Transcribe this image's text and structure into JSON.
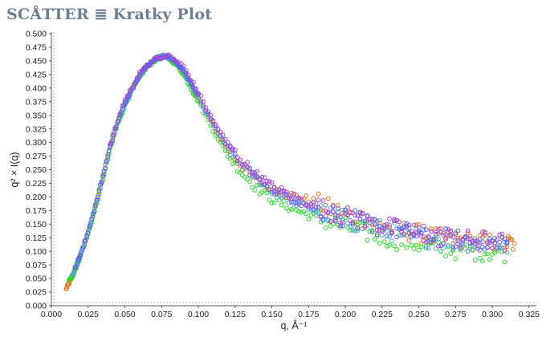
{
  "header": {
    "title": "SCÅTTER ≣ Kratky Plot"
  },
  "chart_data": {
    "type": "scatter",
    "title": "Kratky Plot",
    "xlabel": "q, Å⁻¹",
    "ylabel": "q² × I(q)",
    "xlim": [
      0,
      0.33
    ],
    "ylim": [
      0,
      0.5
    ],
    "xticks": [
      "0.000",
      "0.025",
      "0.050",
      "0.075",
      "0.100",
      "0.125",
      "0.150",
      "0.175",
      "0.200",
      "0.225",
      "0.250",
      "0.275",
      "0.300",
      "0.325"
    ],
    "yticks": [
      "0.000",
      "0.025",
      "0.050",
      "0.075",
      "0.100",
      "0.125",
      "0.150",
      "0.175",
      "0.200",
      "0.225",
      "0.250",
      "0.275",
      "0.300",
      "0.325",
      "0.350",
      "0.375",
      "0.400",
      "0.425",
      "0.450",
      "0.475",
      "0.500"
    ],
    "grid": false,
    "legend": "none",
    "series": [
      {
        "color": "#e8701a",
        "x": [
          0.01,
          0.012,
          0.014,
          0.016,
          0.018,
          0.02,
          0.025,
          0.03,
          0.035,
          0.04,
          0.045,
          0.05,
          0.055,
          0.06,
          0.065,
          0.07,
          0.075,
          0.08,
          0.085,
          0.09,
          0.095,
          0.1,
          0.11,
          0.12,
          0.13,
          0.14,
          0.15,
          0.16,
          0.17,
          0.18,
          0.19,
          0.2,
          0.21,
          0.22,
          0.23,
          0.24,
          0.25,
          0.26,
          0.27,
          0.28,
          0.29,
          0.3,
          0.31,
          0.315
        ],
        "y": [
          0.03,
          0.042,
          0.052,
          0.065,
          0.08,
          0.095,
          0.135,
          0.185,
          0.24,
          0.295,
          0.34,
          0.375,
          0.4,
          0.425,
          0.44,
          0.452,
          0.458,
          0.455,
          0.445,
          0.428,
          0.405,
          0.38,
          0.33,
          0.285,
          0.255,
          0.23,
          0.215,
          0.205,
          0.198,
          0.19,
          0.178,
          0.168,
          0.16,
          0.152,
          0.145,
          0.138,
          0.132,
          0.126,
          0.122,
          0.12,
          0.118,
          0.116,
          0.115,
          0.114
        ]
      },
      {
        "color": "#22e022",
        "x": [
          0.012,
          0.015,
          0.018,
          0.02,
          0.025,
          0.03,
          0.035,
          0.04,
          0.045,
          0.05,
          0.055,
          0.06,
          0.065,
          0.07,
          0.075,
          0.08,
          0.085,
          0.09,
          0.095,
          0.1,
          0.11,
          0.12,
          0.13,
          0.14,
          0.15,
          0.16,
          0.17,
          0.18,
          0.19,
          0.2,
          0.21,
          0.22,
          0.23,
          0.24,
          0.25,
          0.26,
          0.27,
          0.28,
          0.29,
          0.3,
          0.31
        ],
        "y": [
          0.045,
          0.06,
          0.078,
          0.093,
          0.132,
          0.18,
          0.232,
          0.288,
          0.333,
          0.368,
          0.397,
          0.42,
          0.438,
          0.45,
          0.457,
          0.455,
          0.443,
          0.425,
          0.4,
          0.375,
          0.323,
          0.276,
          0.243,
          0.215,
          0.196,
          0.183,
          0.172,
          0.162,
          0.153,
          0.145,
          0.138,
          0.13,
          0.124,
          0.118,
          0.113,
          0.108,
          0.105,
          0.102,
          0.1,
          0.099,
          0.098
        ]
      },
      {
        "color": "#4aa3e8",
        "x": [
          0.014,
          0.018,
          0.022,
          0.026,
          0.03,
          0.035,
          0.04,
          0.045,
          0.05,
          0.055,
          0.06,
          0.065,
          0.07,
          0.075,
          0.08,
          0.085,
          0.09,
          0.095,
          0.1,
          0.11,
          0.12,
          0.13,
          0.14,
          0.15,
          0.16,
          0.17,
          0.18,
          0.19,
          0.2,
          0.21,
          0.22,
          0.23,
          0.24,
          0.25,
          0.26,
          0.27,
          0.28,
          0.29,
          0.3,
          0.31
        ],
        "y": [
          0.055,
          0.08,
          0.11,
          0.145,
          0.182,
          0.235,
          0.29,
          0.335,
          0.37,
          0.398,
          0.422,
          0.44,
          0.452,
          0.458,
          0.456,
          0.446,
          0.43,
          0.407,
          0.383,
          0.333,
          0.288,
          0.256,
          0.232,
          0.212,
          0.198,
          0.186,
          0.175,
          0.166,
          0.158,
          0.15,
          0.143,
          0.137,
          0.131,
          0.126,
          0.122,
          0.119,
          0.117,
          0.116,
          0.115,
          0.114
        ]
      },
      {
        "color": "#5a5cf0",
        "x": [
          0.016,
          0.02,
          0.025,
          0.03,
          0.035,
          0.04,
          0.045,
          0.05,
          0.055,
          0.06,
          0.065,
          0.07,
          0.075,
          0.08,
          0.085,
          0.09,
          0.095,
          0.1,
          0.11,
          0.12,
          0.13,
          0.14,
          0.15,
          0.16,
          0.17,
          0.18,
          0.19,
          0.2,
          0.21,
          0.22,
          0.23,
          0.24,
          0.25,
          0.26,
          0.27,
          0.28,
          0.29,
          0.3,
          0.31
        ],
        "y": [
          0.068,
          0.096,
          0.136,
          0.184,
          0.238,
          0.292,
          0.338,
          0.372,
          0.4,
          0.424,
          0.442,
          0.453,
          0.459,
          0.457,
          0.448,
          0.432,
          0.41,
          0.386,
          0.336,
          0.292,
          0.26,
          0.236,
          0.216,
          0.202,
          0.19,
          0.179,
          0.17,
          0.162,
          0.155,
          0.148,
          0.142,
          0.136,
          0.131,
          0.127,
          0.124,
          0.121,
          0.119,
          0.118,
          0.117
        ]
      },
      {
        "color": "#b040d8",
        "x": [
          0.04,
          0.05,
          0.06,
          0.07,
          0.08,
          0.09,
          0.1,
          0.11,
          0.12,
          0.13,
          0.14,
          0.15,
          0.16,
          0.17,
          0.18,
          0.19,
          0.2,
          0.21,
          0.22,
          0.23,
          0.24,
          0.25,
          0.26,
          0.27,
          0.28,
          0.29,
          0.3,
          0.31
        ],
        "y": [
          0.3,
          0.378,
          0.428,
          0.452,
          0.46,
          0.44,
          0.392,
          0.34,
          0.298,
          0.266,
          0.24,
          0.22,
          0.206,
          0.194,
          0.183,
          0.173,
          0.165,
          0.157,
          0.15,
          0.144,
          0.138,
          0.133,
          0.128,
          0.125,
          0.122,
          0.12,
          0.118,
          0.116
        ]
      }
    ]
  }
}
